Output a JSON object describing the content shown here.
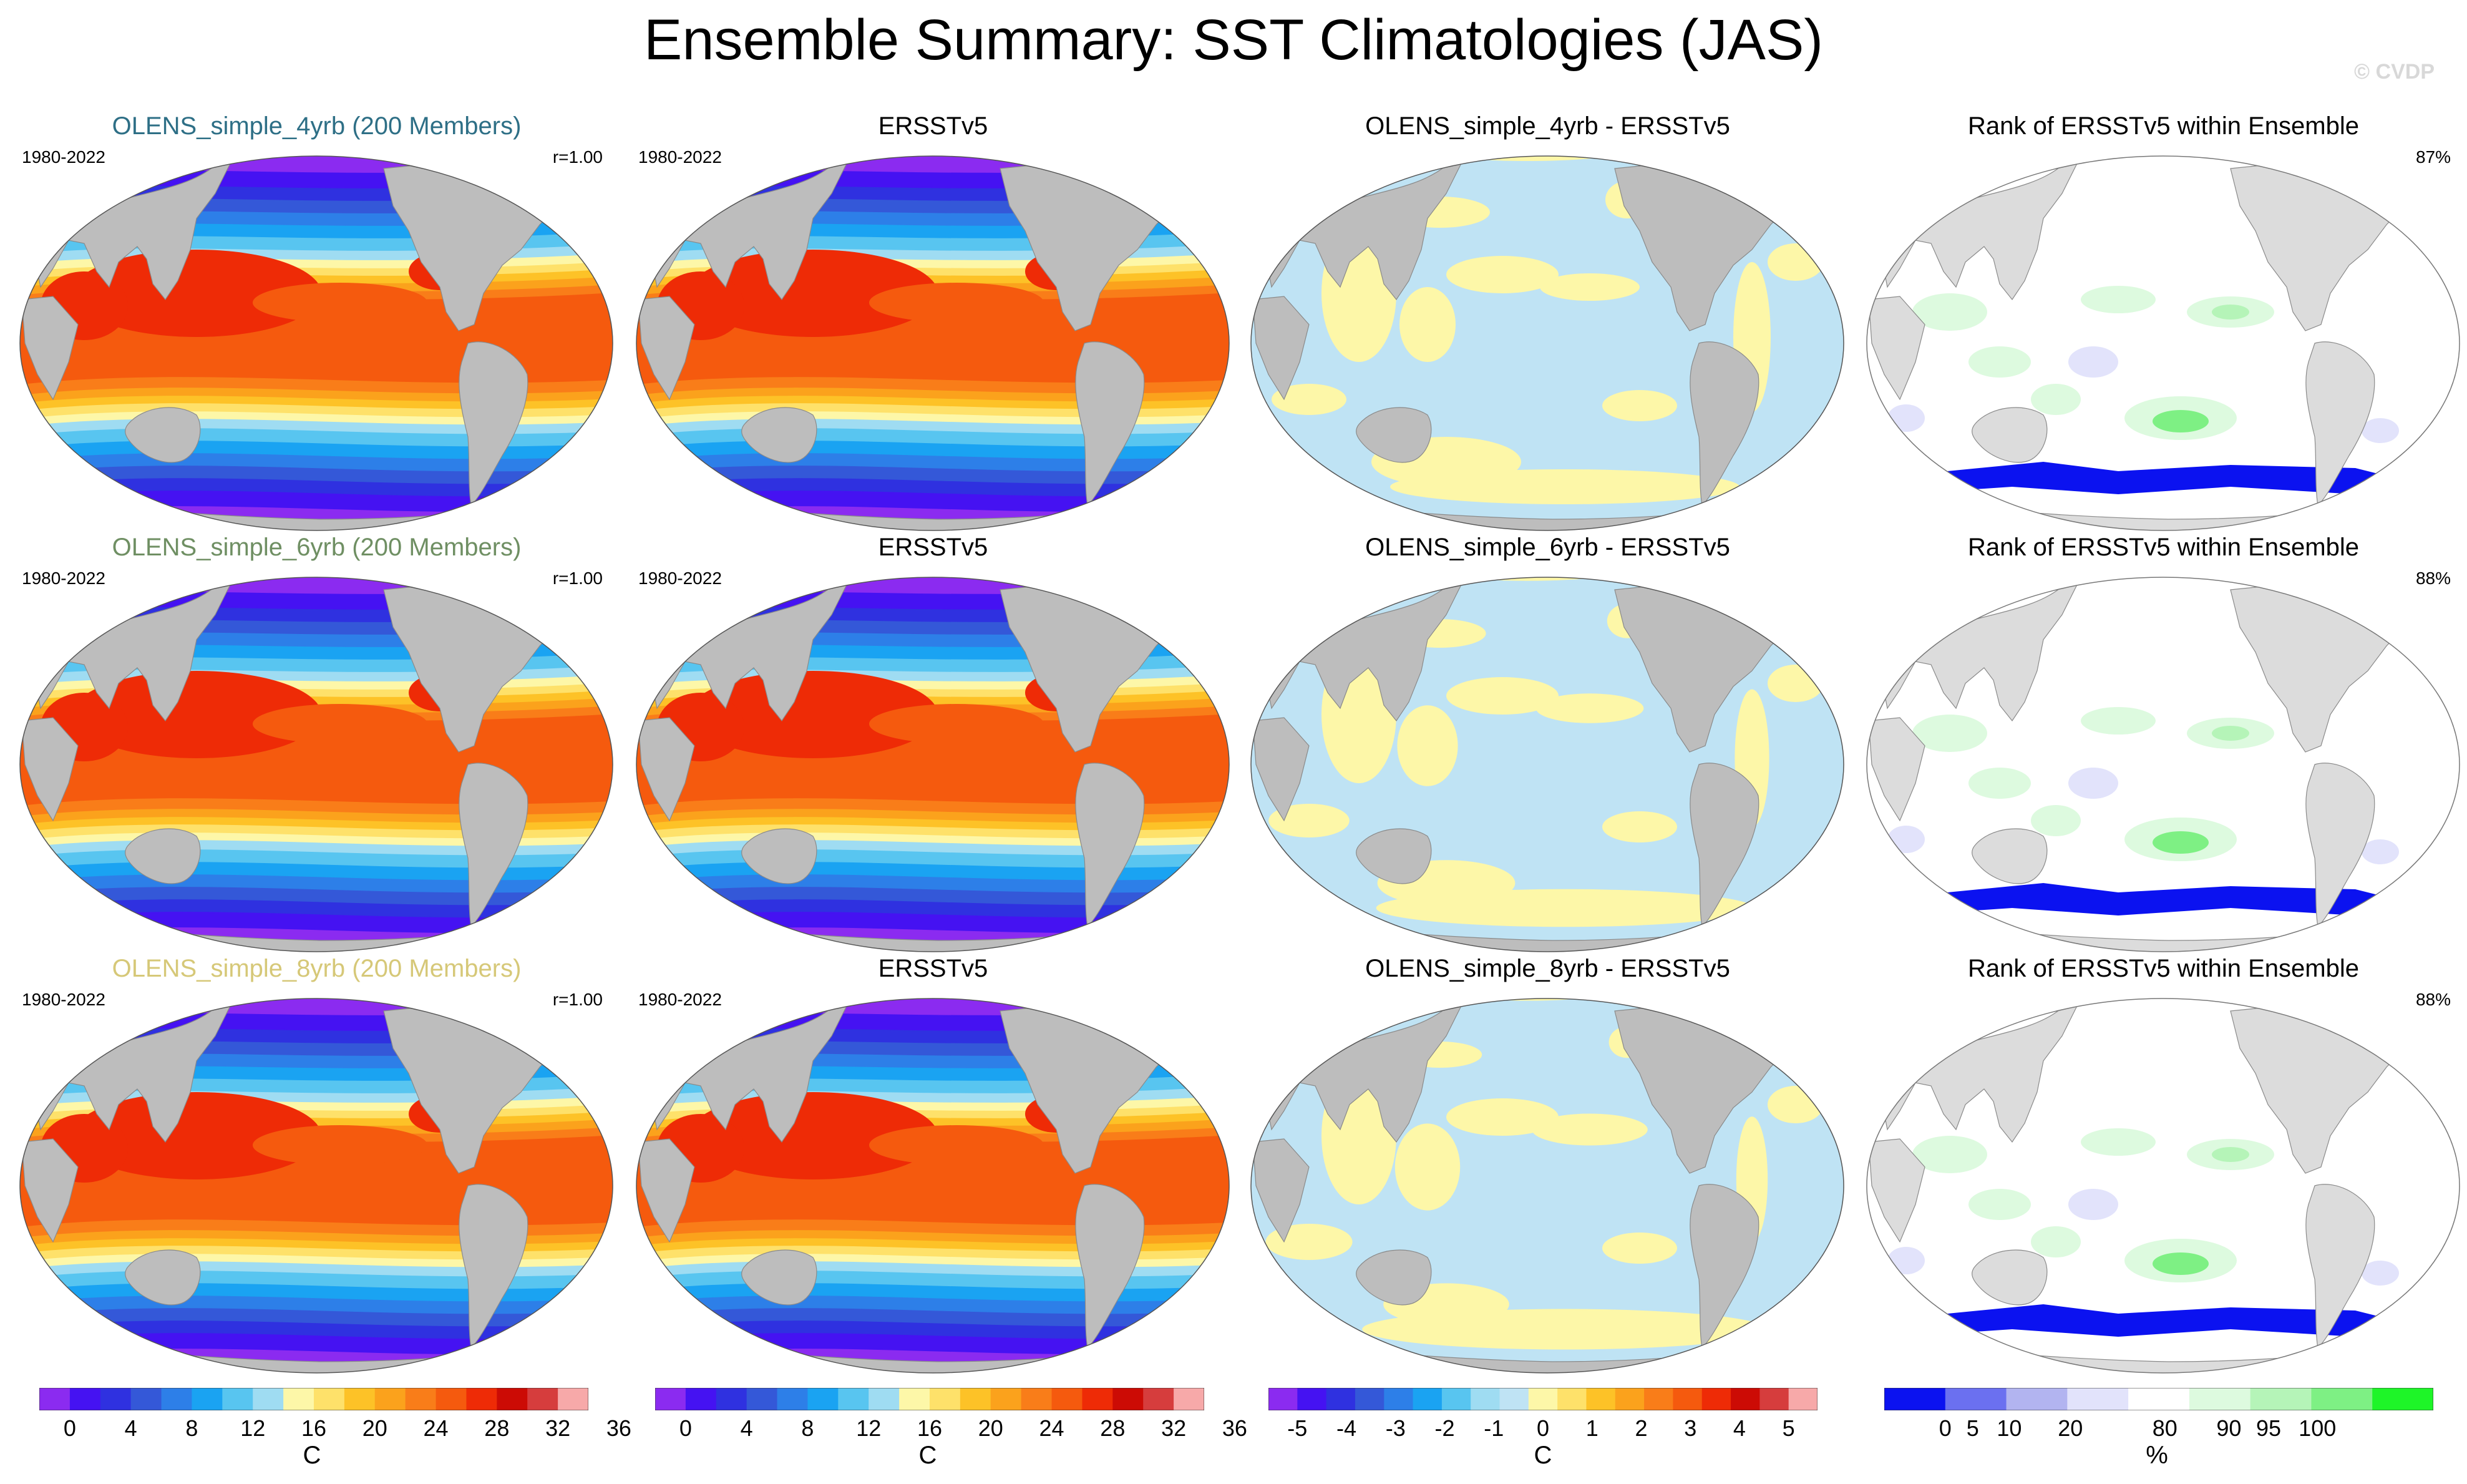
{
  "title": "Ensemble Summary: SST Climatologies (JAS)",
  "copyright": "© CVDP",
  "colors": {
    "sst": [
      "#8b2bf0",
      "#4512f2",
      "#2f31e0",
      "#3458d8",
      "#2d7fe8",
      "#1aa3f2",
      "#58c5f0",
      "#9fdcf2",
      "#fdf7a8",
      "#fee16a",
      "#fdc227",
      "#fba21c",
      "#f97d19",
      "#f55a0e",
      "#ee2b06",
      "#cc0b05",
      "#d63d3d",
      "#f7a9a9"
    ],
    "diff": [
      "#8b2bf0",
      "#4512f2",
      "#2f31e0",
      "#3458d8",
      "#2d7fe8",
      "#1aa3f2",
      "#58c5f0",
      "#9fdcf2",
      "#bfe3f4",
      "#fdf7a8",
      "#fee16a",
      "#fdc227",
      "#fba21c",
      "#f97d19",
      "#f55a0e",
      "#ee2b06",
      "#cc0b05",
      "#d63d3d",
      "#f7a9a9"
    ],
    "rank": [
      "#0b12f0",
      "#6b70f0",
      "#b2b4f0",
      "#e2e3fb",
      "#ffffff",
      "#ddfadf",
      "#b5f4b8",
      "#7ef084",
      "#1ef528"
    ],
    "land": "#bdbdbd",
    "rank_land": "#dcdcdc"
  },
  "rows": [
    {
      "ensemble": {
        "title": "OLENS_simple_4yrb (200 Members)",
        "title_color": "#2e6f86",
        "period": "1980-2022",
        "corr": "r=1.00"
      },
      "obs": {
        "title": "ERSSTv5",
        "period": "1980-2022"
      },
      "diff": {
        "title": "OLENS_simple_4yrb - ERSSTv5"
      },
      "rank": {
        "title": "Rank of ERSSTv5 within Ensemble",
        "percent": "87%"
      }
    },
    {
      "ensemble": {
        "title": "OLENS_simple_6yrb (200 Members)",
        "title_color": "#6f8f63",
        "period": "1980-2022",
        "corr": "r=1.00"
      },
      "obs": {
        "title": "ERSSTv5",
        "period": "1980-2022"
      },
      "diff": {
        "title": "OLENS_simple_6yrb - ERSSTv5"
      },
      "rank": {
        "title": "Rank of ERSSTv5 within Ensemble",
        "percent": "88%"
      }
    },
    {
      "ensemble": {
        "title": "OLENS_simple_8yrb (200 Members)",
        "title_color": "#d6c878",
        "period": "1980-2022",
        "corr": "r=1.00"
      },
      "obs": {
        "title": "ERSSTv5",
        "period": "1980-2022"
      },
      "diff": {
        "title": "OLENS_simple_8yrb - ERSSTv5"
      },
      "rank": {
        "title": "Rank of ERSSTv5 within Ensemble",
        "percent": "88%"
      }
    }
  ],
  "colorbars": [
    {
      "unit": "C",
      "labels": [
        "0",
        "4",
        "8",
        "12",
        "16",
        "20",
        "24",
        "28",
        "32",
        "36"
      ]
    },
    {
      "unit": "C",
      "labels": [
        "0",
        "4",
        "8",
        "12",
        "16",
        "20",
        "24",
        "28",
        "32",
        "36"
      ]
    },
    {
      "unit": "C",
      "labels": [
        "-5",
        "-4",
        "-3",
        "-2",
        "-1",
        "0",
        "1",
        "2",
        "3",
        "4",
        "5"
      ]
    },
    {
      "unit": "%",
      "labels": [
        "0",
        "5",
        "10",
        "20",
        "80",
        "90",
        "95",
        "100"
      ]
    }
  ]
}
